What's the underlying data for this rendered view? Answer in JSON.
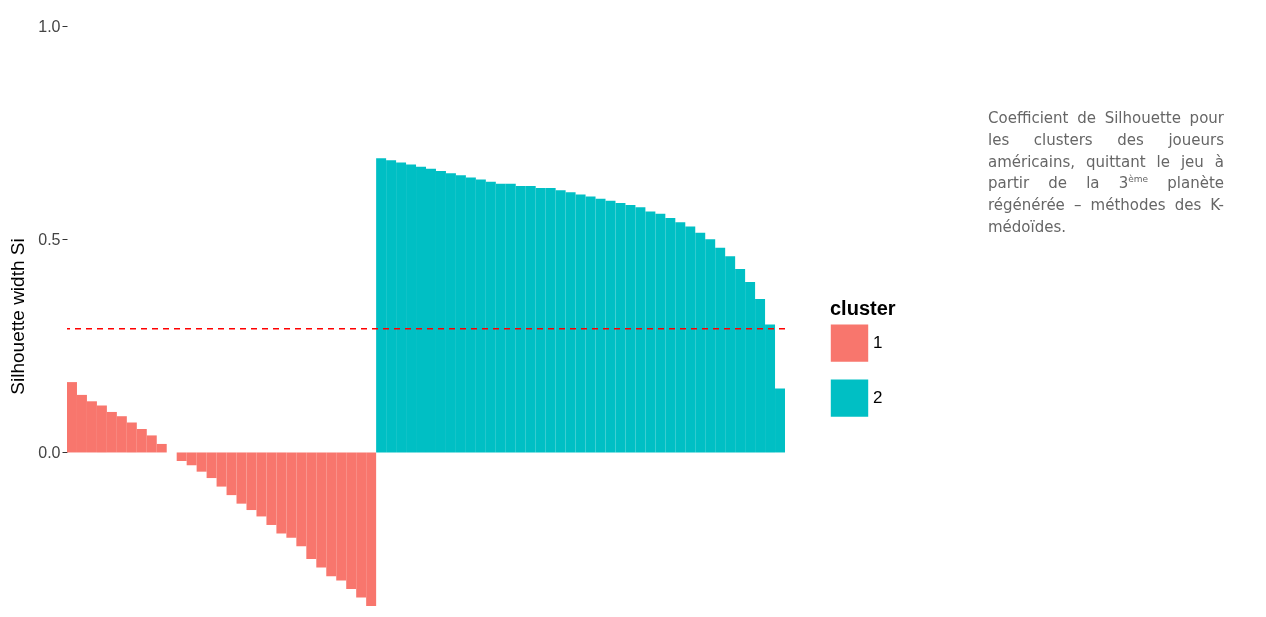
{
  "chart_data": {
    "type": "bar",
    "ylabel": "Silhouette width Si",
    "legend_title": "cluster",
    "legend": "right",
    "tick_labels": "y",
    "ylim": [
      -0.36,
      1.0
    ],
    "yticks": [
      {
        "value": 0,
        "label": "0.0"
      },
      {
        "value": 0.5,
        "label": "0.5"
      },
      {
        "value": 1,
        "label": "1.0"
      }
    ],
    "categories": [
      null,
      null,
      null,
      null,
      null,
      null,
      null,
      null,
      null,
      null,
      null,
      null,
      null,
      null,
      null,
      null,
      null,
      null,
      null,
      null,
      null,
      null,
      null,
      null,
      null,
      null,
      null,
      null,
      null,
      null,
      null,
      null,
      null,
      null,
      null,
      null,
      null,
      null,
      null,
      null,
      null,
      null,
      null,
      null,
      null,
      null,
      null,
      null,
      null,
      null,
      null,
      null,
      null,
      null,
      null,
      null,
      null,
      null,
      null,
      null,
      null,
      null,
      null,
      null,
      null,
      null,
      null,
      null,
      null,
      null,
      null,
      null
    ],
    "series": [
      {
        "name": "1",
        "color": "#f8766d",
        "values": [
          0.165,
          0.135,
          0.12,
          0.11,
          0.095,
          0.085,
          0.07,
          0.055,
          0.04,
          0.02,
          0.0,
          -0.02,
          -0.03,
          -0.045,
          -0.06,
          -0.08,
          -0.1,
          -0.12,
          -0.135,
          -0.15,
          -0.17,
          -0.19,
          -0.2,
          -0.22,
          -0.25,
          -0.27,
          -0.29,
          -0.3,
          -0.32,
          -0.34,
          -0.36,
          null,
          null,
          null,
          null,
          null,
          null,
          null,
          null,
          null,
          null,
          null,
          null,
          null,
          null,
          null,
          null,
          null,
          null,
          null,
          null,
          null,
          null,
          null,
          null,
          null,
          null,
          null,
          null,
          null,
          null,
          null,
          null,
          null,
          null,
          null,
          null,
          null,
          null,
          null,
          null,
          null
        ]
      },
      {
        "name": "2",
        "color": "#00bfc4",
        "values": [
          null,
          null,
          null,
          null,
          null,
          null,
          null,
          null,
          null,
          null,
          null,
          null,
          null,
          null,
          null,
          null,
          null,
          null,
          null,
          null,
          null,
          null,
          null,
          null,
          null,
          null,
          null,
          null,
          null,
          null,
          null,
          0.69,
          0.685,
          0.68,
          0.675,
          0.67,
          0.665,
          0.66,
          0.655,
          0.65,
          0.645,
          0.64,
          0.635,
          0.63,
          0.63,
          0.625,
          0.625,
          0.62,
          0.62,
          0.615,
          0.61,
          0.605,
          0.6,
          0.595,
          0.59,
          0.585,
          0.58,
          0.575,
          0.565,
          0.56,
          0.55,
          0.54,
          0.53,
          0.515,
          0.5,
          0.48,
          0.46,
          0.43,
          0.4,
          0.36,
          0.3,
          0.15
        ]
      }
    ],
    "ref_lines": [
      {
        "axis": "y",
        "value": 0.29,
        "color": "#ff0000",
        "line_style": "dashed"
      }
    ],
    "annotations": [
      "Coefficient de Silhouette pour les clusters des joueurs américains, quittant le jeu à partir de la 3$^{ème}$ planète régénérée – méthodes des K-médoïdes."
    ]
  }
}
